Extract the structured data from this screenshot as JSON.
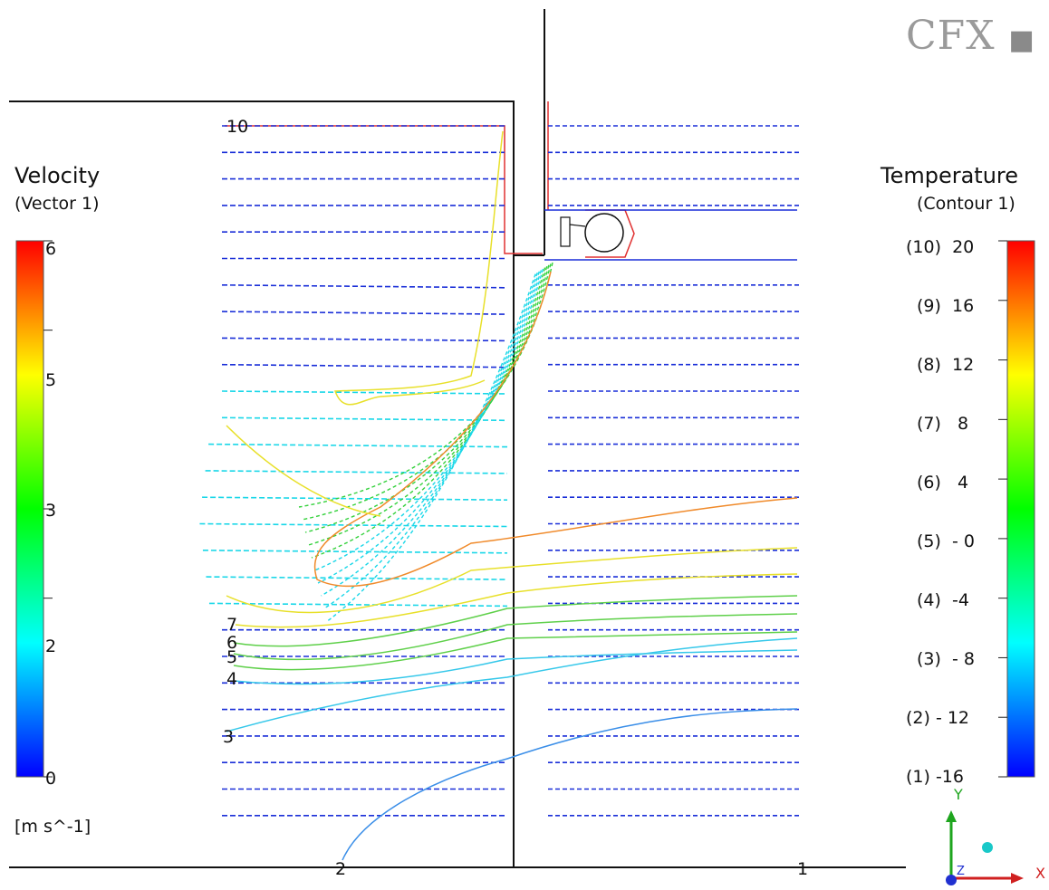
{
  "logo": {
    "text": "CFX"
  },
  "velocity_legend": {
    "title": "Velocity",
    "subtitle": "(Vector  1)",
    "unit": "[m  s^-1]",
    "ticks": [
      "6",
      "5",
      "3",
      "2",
      "0"
    ],
    "tick_values": [
      6,
      5,
      3,
      2,
      0
    ],
    "range": [
      0,
      6
    ],
    "colors": [
      "#0000ff",
      "#00ffff",
      "#00ff00",
      "#ffff00",
      "#ff0000"
    ]
  },
  "temperature_legend": {
    "title": "Temperature",
    "subtitle": "(Contour  1)",
    "ticks": [
      "(10)  20",
      "(9)  16",
      "(8)  12",
      "(7)   8",
      "(6)   4",
      "(5)  - 0",
      "(4)  -4",
      "(3)  - 8",
      "(2) - 12",
      "(1) -16"
    ],
    "tick_values": [
      20,
      16,
      12,
      8,
      4,
      0,
      -4,
      -8,
      -12,
      -16
    ],
    "range": [
      -16,
      20
    ],
    "colors": [
      "#0000ff",
      "#00ffff",
      "#00ff00",
      "#ffff00",
      "#ff0000"
    ]
  },
  "contour_labels": [
    "10",
    "7",
    "6",
    "5",
    "4",
    "3",
    "2",
    "1"
  ],
  "axes": {
    "x": "X",
    "y": "Y",
    "z": "Z"
  },
  "palette": {
    "vector_blue": "#1a2fd8",
    "vector_cyan": "#19d7e8",
    "vector_green": "#34d13c",
    "contour_orange": "#f08a2a",
    "contour_yellow": "#e8e02a",
    "contour_green": "#5fd04a",
    "contour_cyan": "#36c8ea",
    "contour_blue": "#3a8ee8",
    "wall_red": "#e03030"
  }
}
